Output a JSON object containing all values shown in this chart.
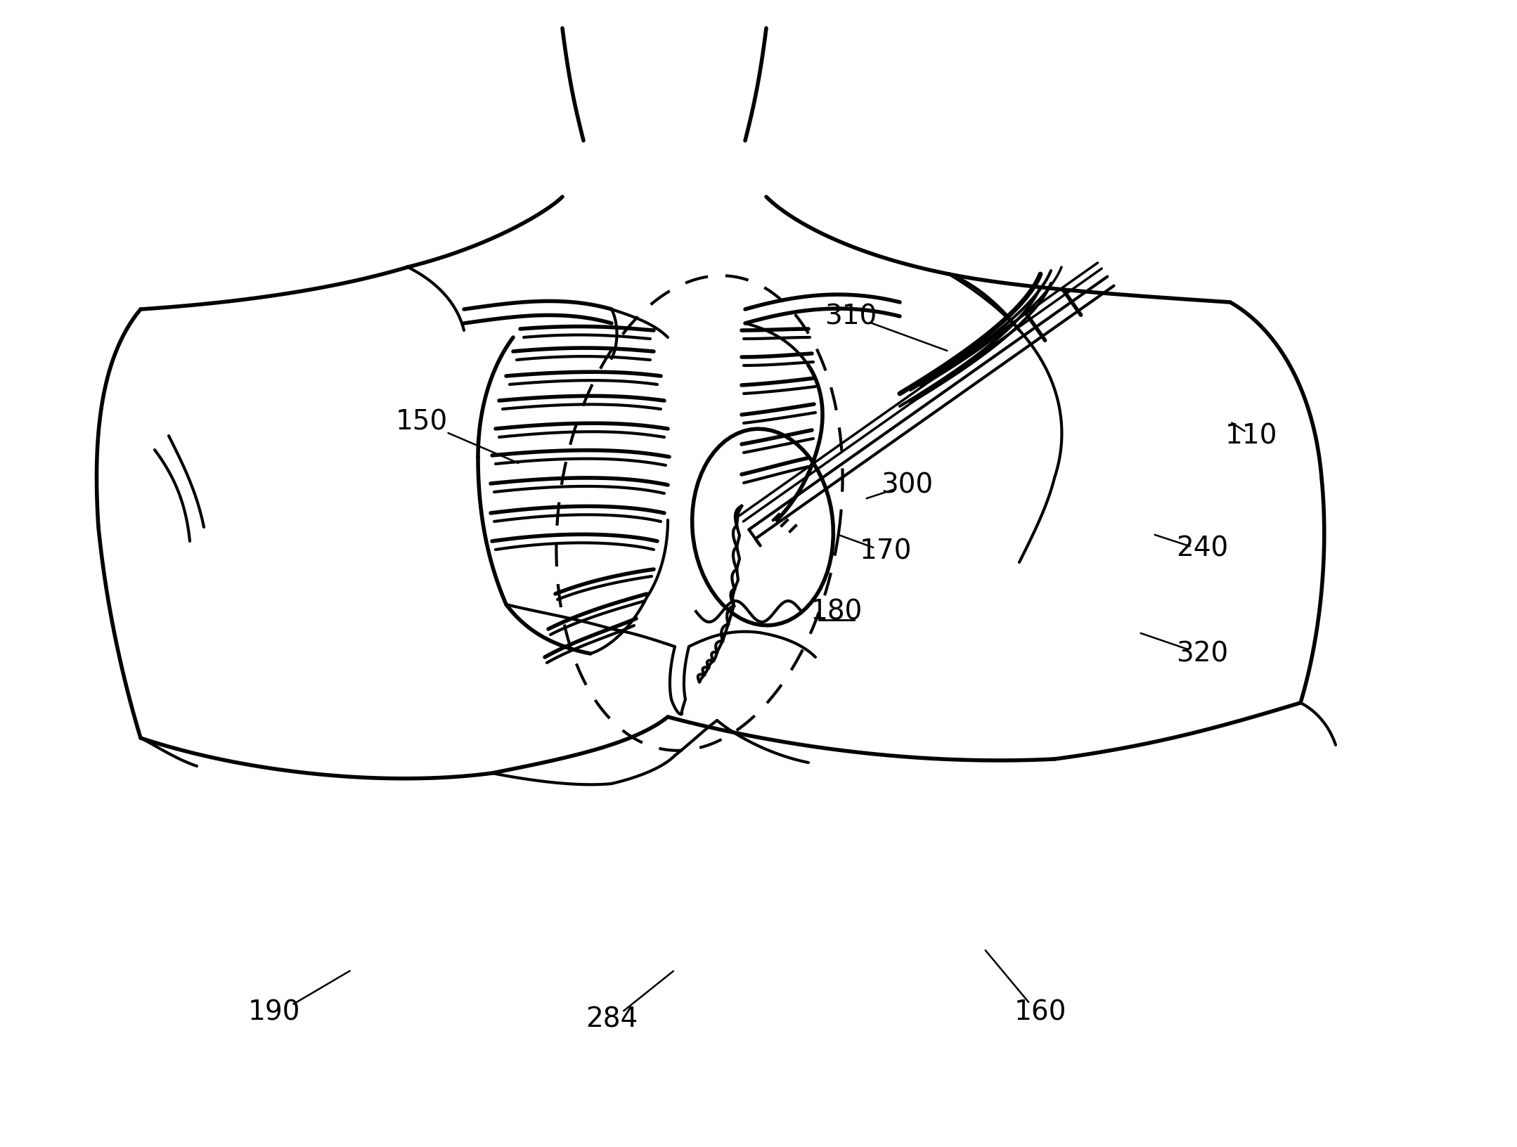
{
  "bg_color": "#ffffff",
  "line_color": "#000000",
  "figsize": [
    21.58,
    16.32
  ],
  "dpi": 100
}
